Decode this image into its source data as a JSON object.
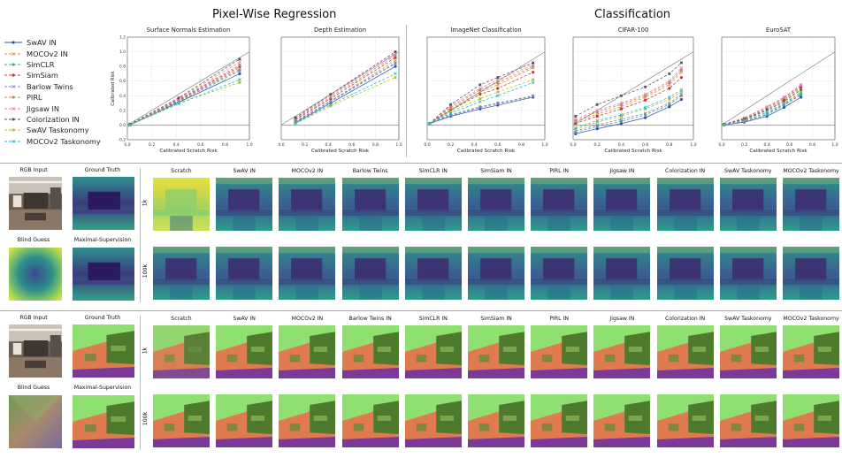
{
  "figure": {
    "section_pixelwise": "Pixel-Wise Regression",
    "section_classification": "Classification"
  },
  "legend": {
    "items": [
      {
        "label": "SwAV IN",
        "color": "#3050b0",
        "marker": "o",
        "dash": "solid"
      },
      {
        "label": "MOCOv2 IN",
        "color": "#e08a3a",
        "marker": "x",
        "dash": "dash"
      },
      {
        "label": "SimCLR",
        "color": "#4aa37a",
        "marker": "s",
        "dash": "dash"
      },
      {
        "label": "SimSiam",
        "color": "#c0392b",
        "marker": "o",
        "dash": "dash"
      },
      {
        "label": "Barlow Twins",
        "color": "#8e7cc3",
        "marker": "x",
        "dash": "dash"
      },
      {
        "label": "PIRL",
        "color": "#b58a5a",
        "marker": "s",
        "dash": "dash"
      },
      {
        "label": "Jigsaw IN",
        "color": "#e377c2",
        "marker": "x",
        "dash": "dash"
      },
      {
        "label": "Colorization IN",
        "color": "#555555",
        "marker": "s",
        "dash": "dash"
      },
      {
        "label": "SwAV Taskonomy",
        "color": "#bcbd22",
        "marker": "s",
        "dash": "dash"
      },
      {
        "label": "MOCOv2 Taskonomy",
        "color": "#17becf",
        "marker": "x",
        "dash": "dash"
      }
    ]
  },
  "chart_data": [
    {
      "type": "line",
      "title": "Surface Normals Estimation",
      "xlabel": "Calibrated Scratch Risk",
      "ylabel": "Calibrated Risk",
      "xlim": [
        0,
        1
      ],
      "ylim": [
        -0.2,
        1.2
      ],
      "xticks": [
        "0.0",
        "0.2",
        "0.4",
        "0.6",
        "0.8",
        "1.0"
      ],
      "yticks": [
        "-0.2",
        "0.0",
        "0.2",
        "0.4",
        "0.6",
        "0.8",
        "1.0",
        "1.2"
      ],
      "x": [
        0.02,
        0.42,
        0.92
      ],
      "series": [
        {
          "name": "SwAV IN",
          "values": [
            0.0,
            0.31,
            0.7
          ]
        },
        {
          "name": "MOCOv2 IN",
          "values": [
            0.0,
            0.33,
            0.78
          ]
        },
        {
          "name": "SimCLR",
          "values": [
            0.0,
            0.32,
            0.74
          ]
        },
        {
          "name": "SimSiam",
          "values": [
            0.01,
            0.34,
            0.8
          ]
        },
        {
          "name": "Barlow Twins",
          "values": [
            0.0,
            0.33,
            0.76
          ]
        },
        {
          "name": "PIRL",
          "values": [
            0.0,
            0.35,
            0.82
          ]
        },
        {
          "name": "Jigsaw IN",
          "values": [
            0.01,
            0.36,
            0.86
          ]
        },
        {
          "name": "Colorization IN",
          "values": [
            0.01,
            0.37,
            0.9
          ]
        },
        {
          "name": "SwAV Taskonomy",
          "values": [
            0.0,
            0.3,
            0.58
          ]
        },
        {
          "name": "MOCOv2 Taskonomy",
          "values": [
            0.0,
            0.29,
            0.62
          ]
        }
      ]
    },
    {
      "type": "line",
      "title": "Depth Estimation",
      "xlabel": "Calibrated Scratch Risk",
      "ylabel": "",
      "xlim": [
        0,
        1
      ],
      "ylim": [
        -0.2,
        1.2
      ],
      "xticks": [
        "0.0",
        "0.2",
        "0.4",
        "0.6",
        "0.8",
        "1.0"
      ],
      "yticks": [],
      "x": [
        0.12,
        0.42,
        0.97
      ],
      "series": [
        {
          "name": "SwAV IN",
          "values": [
            0.03,
            0.3,
            0.8
          ]
        },
        {
          "name": "MOCOv2 IN",
          "values": [
            0.05,
            0.33,
            0.88
          ]
        },
        {
          "name": "SimCLR",
          "values": [
            0.04,
            0.32,
            0.84
          ]
        },
        {
          "name": "SimSiam",
          "values": [
            0.07,
            0.36,
            0.92
          ]
        },
        {
          "name": "Barlow Twins",
          "values": [
            0.05,
            0.33,
            0.85
          ]
        },
        {
          "name": "PIRL",
          "values": [
            0.08,
            0.38,
            0.95
          ]
        },
        {
          "name": "Jigsaw IN",
          "values": [
            0.09,
            0.4,
            0.98
          ]
        },
        {
          "name": "Colorization IN",
          "values": [
            0.1,
            0.42,
            1.0
          ]
        },
        {
          "name": "SwAV Taskonomy",
          "values": [
            0.02,
            0.26,
            0.65
          ]
        },
        {
          "name": "MOCOv2 Taskonomy",
          "values": [
            0.02,
            0.28,
            0.7
          ]
        }
      ]
    },
    {
      "type": "line",
      "title": "ImageNet Classification",
      "xlabel": "Calibrated Scratch Risk",
      "ylabel": "",
      "xlim": [
        0,
        1
      ],
      "ylim": [
        -0.2,
        1.2
      ],
      "xticks": [
        "0.0",
        "0.2",
        "0.4",
        "0.6",
        "0.8",
        "1.0"
      ],
      "yticks": [],
      "x": [
        0.02,
        0.2,
        0.45,
        0.6,
        0.9
      ],
      "series": [
        {
          "name": "SwAV IN",
          "values": [
            0.02,
            0.12,
            0.22,
            0.27,
            0.38
          ]
        },
        {
          "name": "MOCOv2 IN",
          "values": [
            0.02,
            0.22,
            0.45,
            0.55,
            0.78
          ]
        },
        {
          "name": "SimCLR",
          "values": [
            0.02,
            0.14,
            0.25,
            0.3,
            0.4
          ]
        },
        {
          "name": "SimSiam",
          "values": [
            0.02,
            0.2,
            0.42,
            0.5,
            0.72
          ]
        },
        {
          "name": "Barlow Twins",
          "values": [
            0.02,
            0.13,
            0.24,
            0.29,
            0.39
          ]
        },
        {
          "name": "PIRL",
          "values": [
            0.02,
            0.24,
            0.48,
            0.58,
            0.8
          ]
        },
        {
          "name": "Jigsaw IN",
          "values": [
            0.02,
            0.26,
            0.5,
            0.62,
            0.82
          ]
        },
        {
          "name": "Colorization IN",
          "values": [
            0.02,
            0.28,
            0.55,
            0.65,
            0.85
          ]
        },
        {
          "name": "SwAV Taskonomy",
          "values": [
            0.02,
            0.18,
            0.36,
            0.45,
            0.62
          ]
        },
        {
          "name": "MOCOv2 Taskonomy",
          "values": [
            0.02,
            0.16,
            0.32,
            0.4,
            0.58
          ]
        }
      ]
    },
    {
      "type": "line",
      "title": "CIFAR-100",
      "xlabel": "Calibrated Scratch Risk",
      "ylabel": "",
      "xlim": [
        0,
        1
      ],
      "ylim": [
        -0.2,
        1.2
      ],
      "xticks": [
        "0.0",
        "0.2",
        "0.4",
        "0.6",
        "0.8",
        "1.0"
      ],
      "yticks": [],
      "x": [
        0.02,
        0.2,
        0.4,
        0.6,
        0.8,
        0.9
      ],
      "series": [
        {
          "name": "SwAV IN",
          "values": [
            -0.12,
            -0.05,
            0.02,
            0.1,
            0.25,
            0.35
          ]
        },
        {
          "name": "MOCOv2 IN",
          "values": [
            0.05,
            0.15,
            0.25,
            0.38,
            0.55,
            0.72
          ]
        },
        {
          "name": "SimCLR",
          "values": [
            -0.1,
            -0.02,
            0.05,
            0.14,
            0.28,
            0.4
          ]
        },
        {
          "name": "SimSiam",
          "values": [
            0.02,
            0.12,
            0.22,
            0.34,
            0.5,
            0.65
          ]
        },
        {
          "name": "Barlow Twins",
          "values": [
            -0.08,
            0.0,
            0.08,
            0.16,
            0.3,
            0.42
          ]
        },
        {
          "name": "PIRL",
          "values": [
            0.06,
            0.18,
            0.28,
            0.4,
            0.58,
            0.75
          ]
        },
        {
          "name": "Jigsaw IN",
          "values": [
            0.08,
            0.2,
            0.3,
            0.42,
            0.6,
            0.78
          ]
        },
        {
          "name": "Colorization IN",
          "values": [
            0.12,
            0.28,
            0.4,
            0.52,
            0.7,
            0.85
          ]
        },
        {
          "name": "SwAV Taskonomy",
          "values": [
            -0.06,
            0.04,
            0.12,
            0.22,
            0.35,
            0.45
          ]
        },
        {
          "name": "MOCOv2 Taskonomy",
          "values": [
            -0.04,
            0.06,
            0.14,
            0.24,
            0.38,
            0.48
          ]
        }
      ]
    },
    {
      "type": "line",
      "title": "EuroSAT",
      "xlabel": "Calibrated Scratch Risk",
      "ylabel": "",
      "xlim": [
        0,
        1
      ],
      "ylim": [
        -0.2,
        1.2
      ],
      "xticks": [
        "0.0",
        "0.2",
        "0.4",
        "0.6",
        "0.8",
        "1.0"
      ],
      "yticks": [],
      "x": [
        0.02,
        0.2,
        0.4,
        0.55,
        0.7
      ],
      "series": [
        {
          "name": "SwAV IN",
          "values": [
            0.0,
            0.04,
            0.12,
            0.24,
            0.38
          ]
        },
        {
          "name": "MOCOv2 IN",
          "values": [
            0.01,
            0.07,
            0.2,
            0.33,
            0.5
          ]
        },
        {
          "name": "SimCLR",
          "values": [
            0.0,
            0.05,
            0.14,
            0.27,
            0.41
          ]
        },
        {
          "name": "SimSiam",
          "values": [
            0.01,
            0.08,
            0.22,
            0.35,
            0.52
          ]
        },
        {
          "name": "Barlow Twins",
          "values": [
            0.0,
            0.05,
            0.15,
            0.28,
            0.42
          ]
        },
        {
          "name": "PIRL",
          "values": [
            0.01,
            0.09,
            0.24,
            0.37,
            0.54
          ]
        },
        {
          "name": "Jigsaw IN",
          "values": [
            0.01,
            0.1,
            0.25,
            0.38,
            0.55
          ]
        },
        {
          "name": "Colorization IN",
          "values": [
            0.01,
            0.08,
            0.2,
            0.32,
            0.48
          ]
        },
        {
          "name": "SwAV Taskonomy",
          "values": [
            0.0,
            0.06,
            0.18,
            0.3,
            0.45
          ]
        },
        {
          "name": "MOCOv2 Taskonomy",
          "values": [
            0.0,
            0.06,
            0.17,
            0.29,
            0.44
          ]
        }
      ]
    }
  ],
  "depth_block": {
    "rgb_label": "RGB Input",
    "gt_label": "Ground Truth",
    "blind_label": "Blind Guess",
    "max_label": "Maximal-Supervision",
    "row_1k": "1k",
    "row_100k": "100k",
    "methods": [
      "Scratch",
      "SwAV IN",
      "MOCOv2 IN",
      "Barlow Twins",
      "SimCLR IN",
      "SimSiam IN",
      "PIRL IN",
      "Jigsaw IN",
      "Colorization IN",
      "SwAV Taskonomy",
      "MOCOv2 Taskonomy"
    ]
  },
  "normals_block": {
    "rgb_label": "RGB Input",
    "gt_label": "Ground Truth",
    "blind_label": "Blind Guess",
    "max_label": "Maximal-Supervision",
    "row_1k": "1k",
    "row_100k": "100k",
    "methods": [
      "Scratch",
      "SwAV IN",
      "MOCOv2 IN",
      "Barlow Twins IN",
      "SimCLR IN",
      "SimSiam IN",
      "PIRL IN",
      "Jigsaw IN",
      "Colorization IN",
      "SwAV Taskonomy",
      "MOCOv2 Taskonomy"
    ]
  }
}
